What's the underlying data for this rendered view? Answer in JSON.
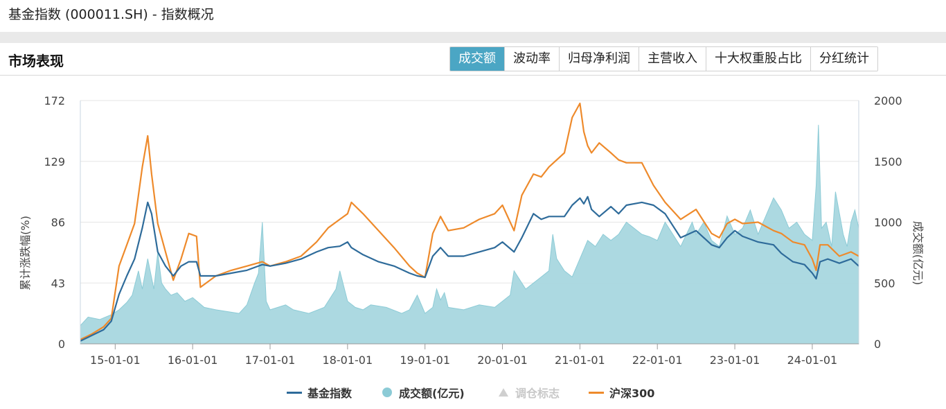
{
  "header": {
    "title": "基金指数 (000011.SH) - 指数概况"
  },
  "section": {
    "title": "市场表现"
  },
  "tabs": [
    {
      "label": "成交额",
      "active": true
    },
    {
      "label": "波动率",
      "active": false
    },
    {
      "label": "归母净利润",
      "active": false
    },
    {
      "label": "主营收入",
      "active": false
    },
    {
      "label": "十大权重股占比",
      "active": false
    },
    {
      "label": "分红统计",
      "active": false
    }
  ],
  "colors": {
    "fund": "#2e6b9a",
    "hs300": "#ee8a2b",
    "volume_fill": "#a8d7df",
    "volume_line": "#8ccbd6",
    "accent": "#4ba6c4"
  },
  "chart_data": {
    "type": "line",
    "title": "",
    "ylabel": "累计涨跌幅(%)",
    "y2label": "成交额(亿元)",
    "ylim": [
      0,
      172
    ],
    "y2lim": [
      0,
      2000
    ],
    "y_ticks": [
      "0",
      "43",
      "86",
      "129",
      "172"
    ],
    "y2_ticks": [
      "0",
      "500",
      "1000",
      "1500",
      "2000"
    ],
    "x_ticks": [
      "15-01-01",
      "16-01-01",
      "17-01-01",
      "18-01-01",
      "19-01-01",
      "20-01-01",
      "21-01-01",
      "22-01-01",
      "23-01-01",
      "24-01-01"
    ],
    "xlim": [
      2014.55,
      2024.6
    ],
    "series": [
      {
        "name": "基金指数",
        "axis": "left",
        "type": "line",
        "x": [
          2014.55,
          2014.7,
          2014.85,
          2014.95,
          2015.05,
          2015.15,
          2015.25,
          2015.35,
          2015.42,
          2015.47,
          2015.55,
          2015.65,
          2015.75,
          2015.85,
          2015.95,
          2016.05,
          2016.1,
          2016.3,
          2016.5,
          2016.7,
          2016.9,
          2017.0,
          2017.2,
          2017.4,
          2017.6,
          2017.75,
          2017.9,
          2018.0,
          2018.05,
          2018.2,
          2018.4,
          2018.6,
          2018.8,
          2018.9,
          2019.0,
          2019.1,
          2019.2,
          2019.3,
          2019.5,
          2019.7,
          2019.9,
          2020.0,
          2020.15,
          2020.25,
          2020.4,
          2020.5,
          2020.6,
          2020.8,
          2020.9,
          2021.0,
          2021.05,
          2021.1,
          2021.15,
          2021.25,
          2021.4,
          2021.5,
          2021.6,
          2021.8,
          2021.95,
          2022.1,
          2022.3,
          2022.5,
          2022.7,
          2022.8,
          2022.9,
          2023.0,
          2023.1,
          2023.3,
          2023.5,
          2023.6,
          2023.75,
          2023.9,
          2024.0,
          2024.05,
          2024.1,
          2024.2,
          2024.35,
          2024.5,
          2024.6
        ],
        "values": [
          2,
          6,
          10,
          16,
          35,
          48,
          60,
          82,
          100,
          92,
          65,
          55,
          48,
          55,
          58,
          58,
          48,
          48,
          50,
          52,
          56,
          55,
          57,
          60,
          65,
          68,
          69,
          72,
          68,
          63,
          58,
          55,
          50,
          48,
          47,
          62,
          68,
          62,
          62,
          65,
          68,
          72,
          65,
          75,
          92,
          88,
          90,
          90,
          98,
          103,
          99,
          104,
          95,
          90,
          97,
          92,
          98,
          100,
          98,
          92,
          75,
          80,
          70,
          68,
          75,
          80,
          76,
          72,
          70,
          64,
          58,
          56,
          50,
          46,
          58,
          60,
          57,
          60,
          55
        ]
      },
      {
        "name": "沪深300",
        "axis": "left",
        "type": "line",
        "x": [
          2014.55,
          2014.7,
          2014.85,
          2014.95,
          2015.05,
          2015.15,
          2015.25,
          2015.35,
          2015.42,
          2015.47,
          2015.55,
          2015.65,
          2015.75,
          2015.85,
          2015.95,
          2016.05,
          2016.1,
          2016.3,
          2016.5,
          2016.7,
          2016.9,
          2017.0,
          2017.2,
          2017.4,
          2017.6,
          2017.75,
          2017.9,
          2018.0,
          2018.05,
          2018.2,
          2018.4,
          2018.6,
          2018.8,
          2018.9,
          2019.0,
          2019.1,
          2019.2,
          2019.3,
          2019.5,
          2019.7,
          2019.9,
          2020.0,
          2020.15,
          2020.25,
          2020.4,
          2020.5,
          2020.6,
          2020.8,
          2020.9,
          2021.0,
          2021.05,
          2021.1,
          2021.15,
          2021.25,
          2021.4,
          2021.5,
          2021.6,
          2021.8,
          2021.95,
          2022.1,
          2022.3,
          2022.5,
          2022.7,
          2022.8,
          2022.9,
          2023.0,
          2023.1,
          2023.3,
          2023.5,
          2023.6,
          2023.75,
          2023.9,
          2024.0,
          2024.05,
          2024.1,
          2024.2,
          2024.35,
          2024.5,
          2024.6
        ],
        "values": [
          3,
          7,
          12,
          18,
          55,
          70,
          85,
          125,
          147,
          120,
          85,
          65,
          45,
          60,
          78,
          76,
          40,
          48,
          52,
          55,
          58,
          55,
          58,
          62,
          72,
          82,
          88,
          92,
          100,
          92,
          80,
          68,
          55,
          50,
          47,
          78,
          90,
          80,
          82,
          88,
          92,
          98,
          80,
          105,
          120,
          118,
          125,
          135,
          160,
          170,
          150,
          140,
          135,
          142,
          135,
          130,
          128,
          128,
          112,
          100,
          88,
          95,
          78,
          75,
          85,
          88,
          85,
          86,
          80,
          78,
          72,
          70,
          60,
          52,
          70,
          70,
          62,
          65,
          62
        ]
      },
      {
        "name": "成交额(亿元)",
        "axis": "right",
        "type": "area",
        "x": [
          2014.55,
          2014.65,
          2014.8,
          2014.95,
          2015.05,
          2015.15,
          2015.22,
          2015.3,
          2015.35,
          2015.42,
          2015.5,
          2015.55,
          2015.6,
          2015.65,
          2015.72,
          2015.8,
          2015.9,
          2016.0,
          2016.15,
          2016.3,
          2016.5,
          2016.6,
          2016.7,
          2016.8,
          2016.85,
          2016.9,
          2016.95,
          2017.0,
          2017.1,
          2017.2,
          2017.3,
          2017.5,
          2017.7,
          2017.85,
          2017.9,
          2018.0,
          2018.1,
          2018.2,
          2018.3,
          2018.5,
          2018.7,
          2018.8,
          2018.9,
          2019.0,
          2019.1,
          2019.15,
          2019.2,
          2019.25,
          2019.3,
          2019.5,
          2019.7,
          2019.9,
          2020.0,
          2020.1,
          2020.15,
          2020.3,
          2020.4,
          2020.5,
          2020.6,
          2020.65,
          2020.7,
          2020.8,
          2020.9,
          2021.0,
          2021.1,
          2021.2,
          2021.3,
          2021.4,
          2021.5,
          2021.6,
          2021.7,
          2021.8,
          2021.9,
          2022.0,
          2022.1,
          2022.2,
          2022.3,
          2022.45,
          2022.5,
          2022.6,
          2022.7,
          2022.8,
          2022.9,
          2023.0,
          2023.1,
          2023.2,
          2023.3,
          2023.4,
          2023.5,
          2023.6,
          2023.7,
          2023.8,
          2023.9,
          2024.0,
          2024.05,
          2024.08,
          2024.12,
          2024.18,
          2024.25,
          2024.3,
          2024.4,
          2024.45,
          2024.5,
          2024.55,
          2024.6
        ],
        "values": [
          150,
          220,
          200,
          240,
          280,
          340,
          400,
          600,
          450,
          700,
          450,
          750,
          500,
          450,
          400,
          420,
          350,
          380,
          300,
          280,
          260,
          250,
          320,
          500,
          580,
          1000,
          350,
          280,
          300,
          320,
          280,
          250,
          300,
          450,
          600,
          350,
          300,
          280,
          320,
          300,
          250,
          280,
          400,
          250,
          300,
          450,
          360,
          420,
          300,
          280,
          320,
          300,
          350,
          400,
          600,
          450,
          500,
          550,
          600,
          900,
          700,
          600,
          550,
          700,
          850,
          800,
          900,
          850,
          900,
          1000,
          950,
          900,
          880,
          850,
          1000,
          900,
          800,
          1000,
          900,
          1000,
          850,
          800,
          1050,
          900,
          950,
          1100,
          900,
          1050,
          1200,
          1100,
          950,
          1000,
          900,
          850,
          1300,
          1800,
          950,
          1000,
          800,
          1250,
          900,
          800,
          1000,
          1100,
          950
        ]
      }
    ]
  },
  "legend": [
    {
      "label": "基金指数",
      "active": true
    },
    {
      "label": "成交额(亿元)",
      "active": true
    },
    {
      "label": "调仓标志",
      "active": false
    },
    {
      "label": "沪深300",
      "active": true
    }
  ]
}
